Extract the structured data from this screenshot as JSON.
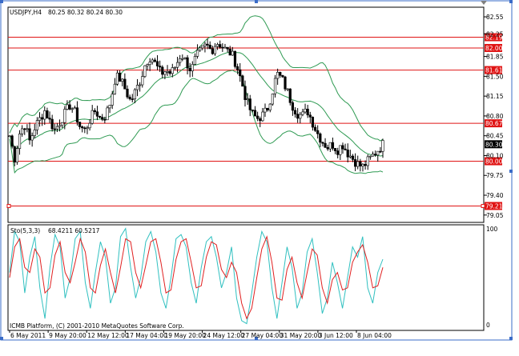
{
  "chart_header": {
    "symbol_period": "USDJPY,H4",
    "ohlc": "80.25 80.32 80.24 80.30"
  },
  "stoch_header": {
    "name": "Sto(5,3,3)",
    "values": "68.4211 60.5217"
  },
  "copyright": "ICMB Platform, (C) 2001-2010 MetaQuotes Software Corp.",
  "colors": {
    "candle": "#000000",
    "bollinger": "#2e9a52",
    "level_line": "#e01414",
    "level_label_bg": "#e01414",
    "price_label_bg": "#000000",
    "stoch_main": "#30c0c0",
    "stoch_signal": "#e02020",
    "grid_border": "#000000"
  },
  "chart_data": [
    {
      "type": "candlestick",
      "name": "price-panel",
      "y_ticks": [
        "82.55",
        "82.25",
        "81.85",
        "81.50",
        "81.15",
        "80.80",
        "80.45",
        "80.10",
        "79.75",
        "79.40",
        "79.05"
      ],
      "y_tick_values": [
        82.55,
        82.25,
        81.85,
        81.5,
        81.15,
        80.8,
        80.45,
        80.1,
        79.75,
        79.4,
        79.05
      ],
      "ylim": [
        78.92,
        82.72
      ],
      "current_price": "80.30",
      "current_price_value": 80.3,
      "horizontal_levels": [
        {
          "label": "82.19",
          "value": 82.19
        },
        {
          "label": "82.00",
          "value": 82.0
        },
        {
          "label": "81.61",
          "value": 81.61
        },
        {
          "label": "80.67",
          "value": 80.67
        },
        {
          "label": "80.00",
          "value": 80.0
        },
        {
          "label": "79.21",
          "value": 79.21
        }
      ],
      "close_path": [
        80.45,
        80.05,
        80.5,
        80.65,
        80.35,
        80.6,
        80.75,
        80.9,
        80.7,
        80.55,
        80.7,
        80.85,
        81.0,
        80.85,
        80.6,
        80.55,
        80.75,
        80.9,
        80.75,
        80.8,
        81.05,
        81.5,
        81.45,
        81.25,
        81.05,
        81.25,
        81.45,
        81.75,
        81.85,
        81.7,
        81.55,
        81.6,
        81.55,
        81.7,
        81.9,
        81.75,
        81.6,
        81.85,
        81.95,
        82.05,
        81.95,
        82.1,
        82.05,
        81.95,
        81.9,
        81.7,
        81.4,
        81.05,
        80.85,
        80.75,
        80.8,
        80.9,
        81.2,
        81.55,
        81.45,
        81.25,
        81.0,
        80.85,
        80.8,
        80.9,
        80.7,
        80.5,
        80.35,
        80.25,
        80.3,
        80.2,
        80.3,
        80.15,
        80.05,
        79.95,
        79.9,
        80.0,
        80.1,
        80.2,
        80.3
      ]
    },
    {
      "type": "line",
      "name": "stochastic-panel",
      "y_ticks": [
        "100",
        "0"
      ],
      "y_tick_values": [
        100,
        0
      ],
      "ylim": [
        0,
        100
      ],
      "series": [
        {
          "name": "main",
          "values": [
            55,
            95,
            85,
            35,
            70,
            90,
            40,
            10,
            60,
            92,
            80,
            30,
            50,
            88,
            95,
            45,
            20,
            55,
            85,
            70,
            25,
            40,
            90,
            98,
            60,
            30,
            50,
            85,
            95,
            75,
            35,
            20,
            50,
            88,
            92,
            80,
            45,
            25,
            60,
            85,
            90,
            70,
            40,
            55,
            80,
            30,
            8,
            5,
            35,
            70,
            95,
            85,
            40,
            10,
            45,
            80,
            60,
            20,
            35,
            75,
            88,
            55,
            15,
            30,
            65,
            45,
            20,
            50,
            80,
            70,
            90,
            40,
            25,
            55,
            68
          ]
        },
        {
          "name": "signal",
          "values": [
            50,
            80,
            88,
            60,
            55,
            78,
            70,
            35,
            40,
            72,
            85,
            55,
            45,
            65,
            88,
            75,
            40,
            35,
            62,
            78,
            55,
            35,
            60,
            88,
            85,
            55,
            40,
            62,
            85,
            88,
            65,
            35,
            38,
            68,
            85,
            88,
            65,
            40,
            42,
            70,
            85,
            82,
            58,
            50,
            65,
            55,
            25,
            10,
            20,
            50,
            78,
            90,
            65,
            30,
            28,
            58,
            70,
            45,
            30,
            55,
            78,
            72,
            40,
            25,
            48,
            55,
            38,
            40,
            65,
            75,
            82,
            65,
            40,
            42,
            60
          ]
        }
      ]
    }
  ],
  "x_axis": {
    "labels": [
      "6 May 2011",
      "9 May 20:00",
      "12 May 12:00",
      "17 May 04:00",
      "19 May 20:00",
      "24 May 12:00",
      "27 May 04:00",
      "31 May 20:00",
      "3 Jun 12:00",
      "8 Jun 04:00"
    ]
  }
}
